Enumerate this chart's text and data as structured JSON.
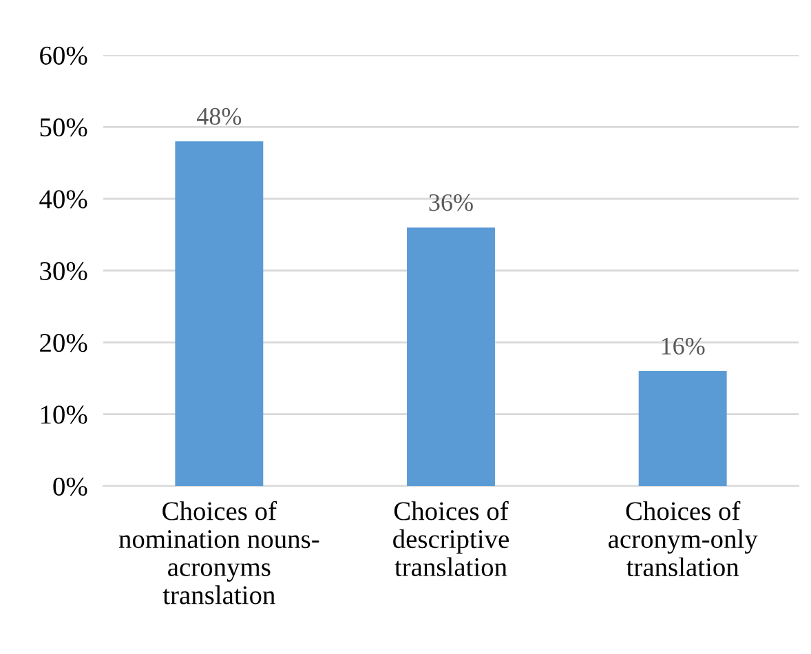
{
  "chart_data": {
    "type": "bar",
    "categories": [
      "Choices of\nnomination nouns-\nacronyms\ntranslation",
      "Choices of\ndescriptive\ntranslation",
      "Choices of\nacronym-only\ntranslation"
    ],
    "values": [
      48,
      36,
      16
    ],
    "value_labels": [
      "48%",
      "36%",
      "16%"
    ],
    "color": "#5b9bd5",
    "ylim": [
      0,
      60
    ],
    "yticks": [
      {
        "value": 0,
        "label": "0%"
      },
      {
        "value": 10,
        "label": "10%"
      },
      {
        "value": 20,
        "label": "20%"
      },
      {
        "value": 30,
        "label": "30%"
      },
      {
        "value": 40,
        "label": "40%"
      },
      {
        "value": 50,
        "label": "50%"
      },
      {
        "value": 60,
        "label": "60%"
      }
    ],
    "grid": "y"
  }
}
